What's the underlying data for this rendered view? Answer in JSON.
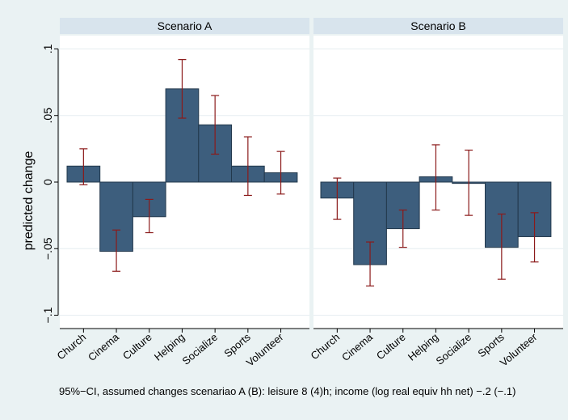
{
  "chart_data": {
    "type": "bar",
    "ylabel": "predicted change",
    "note": "95%−CI, assumed changes scenariao A (B): leisure 8 (4)h; income (log real equiv hh net) −.2 (−.1)",
    "ylim": [
      -0.11,
      0.11
    ],
    "y_ticks": [
      {
        "value": 0.1,
        "label": ".1"
      },
      {
        "value": 0.05,
        "label": ".05"
      },
      {
        "value": 0,
        "label": "0"
      },
      {
        "value": -0.05,
        "label": "−.05"
      },
      {
        "value": -0.1,
        "label": "−.1"
      }
    ],
    "grid": true,
    "categories": [
      "Church",
      "Cinema",
      "Culture",
      "Helping",
      "Socialize",
      "Sports",
      "Volunteer"
    ],
    "colors": {
      "bar": "#3d5e7d",
      "bar_edge": "#22384c",
      "ci": "#8b1a1a",
      "panel_bg": "#ffffff",
      "header_bg": "#d8e4ed",
      "page_bg": "#eaf2f3",
      "grid": "#e6eef1"
    },
    "panels": [
      {
        "title": "Scenario A",
        "values": [
          0.012,
          -0.052,
          -0.026,
          0.07,
          0.043,
          0.012,
          0.007
        ],
        "ci_low": [
          -0.002,
          -0.067,
          -0.038,
          0.048,
          0.021,
          -0.01,
          -0.009
        ],
        "ci_high": [
          0.025,
          -0.036,
          -0.013,
          0.092,
          0.065,
          0.034,
          0.023
        ]
      },
      {
        "title": "Scenario B",
        "values": [
          -0.012,
          -0.062,
          -0.035,
          0.004,
          -0.001,
          -0.049,
          -0.041
        ],
        "ci_low": [
          -0.028,
          -0.078,
          -0.049,
          -0.021,
          -0.025,
          -0.073,
          -0.06
        ],
        "ci_high": [
          0.003,
          -0.045,
          -0.021,
          0.028,
          0.024,
          -0.024,
          -0.023
        ]
      }
    ]
  }
}
